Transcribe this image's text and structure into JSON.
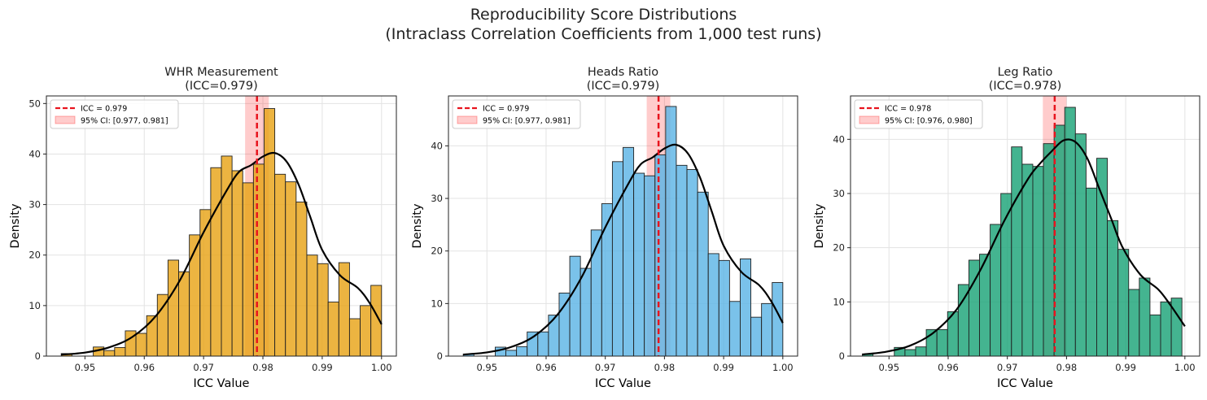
{
  "figure": {
    "title_line1": "Reproducibility Score Distributions",
    "title_line2": "(Intraclass Correlation Coefficients from 1,000 test runs)"
  },
  "chart_data": [
    {
      "type": "bar",
      "title_line1": "WHR Measurement",
      "title_line2": "(ICC=0.979)",
      "xlabel": "ICC Value",
      "ylabel": "Density",
      "xlim": [
        0.9435,
        1.0025
      ],
      "ylim": [
        0,
        51.5
      ],
      "xticks": [
        "0.95",
        "0.96",
        "0.97",
        "0.98",
        "0.99",
        "1.00"
      ],
      "yticks": [
        "0",
        "10",
        "20",
        "30",
        "40",
        "50"
      ],
      "grid": true,
      "legend_position": "upper-left",
      "bar_color": "#E8A317",
      "bin_start": 0.946,
      "bin_width": 0.0018,
      "values": [
        0.5,
        0,
        0,
        1.8,
        1.1,
        1.7,
        5,
        4.5,
        8,
        12.2,
        19,
        16.7,
        24,
        29,
        37.3,
        39.6,
        36.7,
        34.3,
        38,
        49,
        36,
        34.5,
        30.5,
        20,
        18.3,
        10.7,
        18.5,
        7.4,
        10,
        14
      ],
      "kde": [
        [
          0.946,
          0.3
        ],
        [
          0.95,
          0.7
        ],
        [
          0.954,
          1.7
        ],
        [
          0.958,
          3.8
        ],
        [
          0.962,
          8
        ],
        [
          0.966,
          15
        ],
        [
          0.97,
          24.5
        ],
        [
          0.974,
          33
        ],
        [
          0.976,
          36.5
        ],
        [
          0.978,
          37.8
        ],
        [
          0.98,
          39.5
        ],
        [
          0.982,
          40.2
        ],
        [
          0.984,
          38.5
        ],
        [
          0.986,
          34
        ],
        [
          0.988,
          27.5
        ],
        [
          0.99,
          21
        ],
        [
          0.993,
          16
        ],
        [
          0.996,
          13.5
        ],
        [
          0.998,
          10.5
        ],
        [
          1.0,
          6.3
        ]
      ],
      "icc": 0.979,
      "ci": [
        0.977,
        0.981
      ],
      "legend_icc": "ICC = 0.979",
      "legend_ci": "95% CI: [0.977, 0.981]"
    },
    {
      "type": "bar",
      "title_line1": "Heads Ratio",
      "title_line2": "(ICC=0.979)",
      "xlabel": "ICC Value",
      "ylabel": "Density",
      "xlim": [
        0.9435,
        1.0025
      ],
      "ylim": [
        0,
        49.5
      ],
      "xticks": [
        "0.95",
        "0.96",
        "0.97",
        "0.98",
        "0.99",
        "1.00"
      ],
      "yticks": [
        "0",
        "10",
        "20",
        "30",
        "40"
      ],
      "grid": true,
      "legend_position": "upper-left",
      "bar_color": "#5DB4E5",
      "bin_start": 0.946,
      "bin_width": 0.0018,
      "values": [
        0.4,
        0,
        0,
        1.7,
        1.1,
        1.8,
        4.6,
        4.6,
        7.8,
        12,
        19,
        16.7,
        24,
        29,
        37,
        39.7,
        34.8,
        34.3,
        38.3,
        47.5,
        36.3,
        35.5,
        31.2,
        19.5,
        18.2,
        10.4,
        18.5,
        7.4,
        10,
        14
      ],
      "kde": [
        [
          0.946,
          0.3
        ],
        [
          0.95,
          0.7
        ],
        [
          0.954,
          1.7
        ],
        [
          0.958,
          3.8
        ],
        [
          0.962,
          8
        ],
        [
          0.966,
          15
        ],
        [
          0.97,
          24.5
        ],
        [
          0.974,
          33
        ],
        [
          0.976,
          36.5
        ],
        [
          0.978,
          37.8
        ],
        [
          0.98,
          39.5
        ],
        [
          0.982,
          40.2
        ],
        [
          0.984,
          38.5
        ],
        [
          0.986,
          34
        ],
        [
          0.988,
          27.5
        ],
        [
          0.99,
          21
        ],
        [
          0.993,
          16
        ],
        [
          0.996,
          13.5
        ],
        [
          0.998,
          10.5
        ],
        [
          1.0,
          6.3
        ]
      ],
      "icc": 0.979,
      "ci": [
        0.977,
        0.981
      ],
      "legend_icc": "ICC = 0.979",
      "legend_ci": "95% CI: [0.977, 0.981]"
    },
    {
      "type": "bar",
      "title_line1": "Leg Ratio",
      "title_line2": "(ICC=0.978)",
      "xlabel": "ICC Value",
      "ylabel": "Density",
      "xlim": [
        0.9435,
        1.0025
      ],
      "ylim": [
        0,
        48
      ],
      "xticks": [
        "0.95",
        "0.96",
        "0.97",
        "0.98",
        "0.99",
        "1.00"
      ],
      "yticks": [
        "0",
        "10",
        "20",
        "30",
        "40"
      ],
      "grid": true,
      "legend_position": "upper-left",
      "bar_color": "#1BA477",
      "bin_start": 0.9455,
      "bin_width": 0.0018,
      "values": [
        0.4,
        0,
        0,
        1.6,
        1.2,
        1.7,
        4.9,
        4.9,
        8.2,
        13.2,
        17.7,
        18.8,
        24.3,
        30,
        38.6,
        35.4,
        35,
        39.2,
        42.6,
        45.9,
        41,
        31,
        36.5,
        25,
        19.7,
        12.3,
        14.4,
        7.6,
        10,
        10.7
      ],
      "kde": [
        [
          0.9455,
          0.3
        ],
        [
          0.9495,
          0.8
        ],
        [
          0.9535,
          1.9
        ],
        [
          0.9575,
          4.3
        ],
        [
          0.9615,
          8.7
        ],
        [
          0.9655,
          16
        ],
        [
          0.9695,
          25
        ],
        [
          0.9735,
          32.7
        ],
        [
          0.9755,
          35.5
        ],
        [
          0.9775,
          37.8
        ],
        [
          0.9795,
          39.8
        ],
        [
          0.9815,
          39.5
        ],
        [
          0.9835,
          36.5
        ],
        [
          0.9855,
          31
        ],
        [
          0.9875,
          25.5
        ],
        [
          0.9895,
          20
        ],
        [
          0.9925,
          15
        ],
        [
          0.9955,
          12.3
        ],
        [
          0.9975,
          9.5
        ],
        [
          1.0,
          5.5
        ]
      ],
      "icc": 0.978,
      "ci": [
        0.976,
        0.98
      ],
      "legend_icc": "ICC = 0.978",
      "legend_ci": "95% CI: [0.976, 0.980]"
    }
  ]
}
